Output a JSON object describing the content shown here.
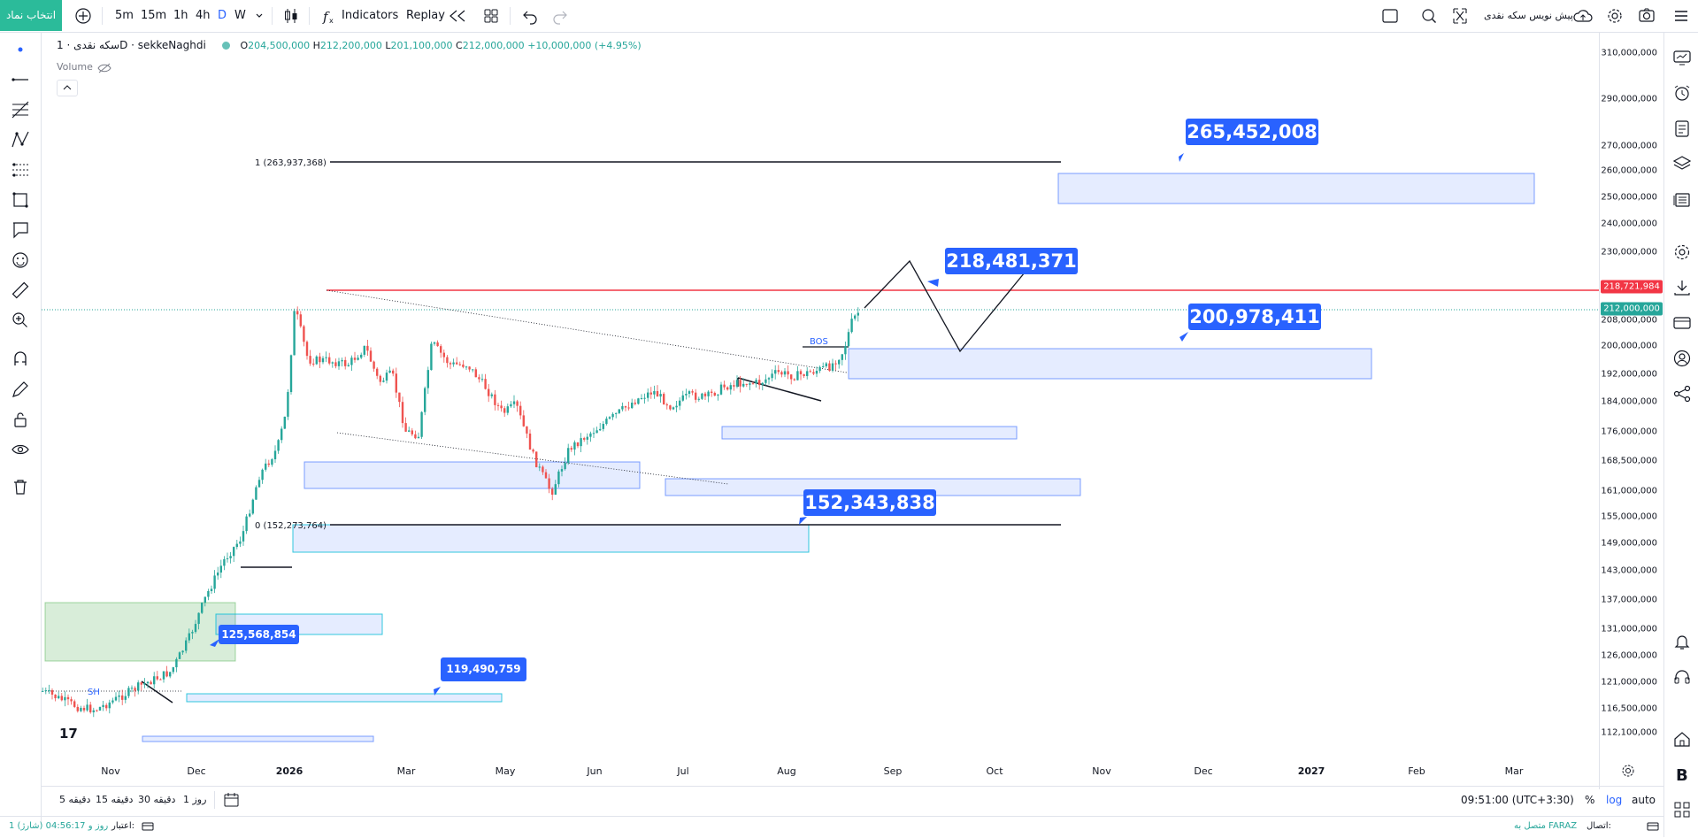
{
  "topbar": {
    "symbol_button": "انتخاب نماد",
    "timeframes": [
      "5m",
      "15m",
      "1h",
      "4h",
      "D",
      "W"
    ],
    "active_timeframe": "D",
    "indicators": "Indicators",
    "replay": "Replay",
    "ticker_label": "پیش نویس سکه نقدی"
  },
  "legend": {
    "name": "سکه نقدی · 1D · sekkeNaghdi",
    "open_label": "O",
    "open": "204,500,000",
    "high_label": "H",
    "high": "212,200,000",
    "low_label": "L",
    "low": "201,100,000",
    "close_label": "C",
    "close": "212,000,000",
    "change": "+10,000,000 (+4.95%)",
    "volume": "Volume"
  },
  "price_axis": {
    "ticks": [
      "310,000,000",
      "290,000,000",
      "270,000,000",
      "260,000,000",
      "250,000,000",
      "240,000,000",
      "230,000,000",
      "208,000,000",
      "200,000,000",
      "192,000,000",
      "184,000,000",
      "176,000,000",
      "168,500,000",
      "161,000,000",
      "155,000,000",
      "149,000,000",
      "143,000,000",
      "137,000,000",
      "131,000,000",
      "126,000,000",
      "121,000,000",
      "116,500,000",
      "112,100,000"
    ],
    "last_price": "212,000,000",
    "red_level": "218,721,984"
  },
  "time_axis": {
    "labels": [
      "Nov",
      "Dec",
      "2026",
      "Mar",
      "May",
      "Jun",
      "Jul",
      "Aug",
      "Sep",
      "Oct",
      "Nov",
      "Dec",
      "2027",
      "Feb",
      "Mar"
    ]
  },
  "drawings": {
    "callouts": [
      "265,452,008",
      "218,481,371",
      "200,978,411",
      "152,343,838",
      "125,568,854",
      "119,490,759"
    ],
    "fib_top": "1 (263,937,368)",
    "fib_bottom": "0 (152,273,764)",
    "bos": "BOS",
    "sh": "SH"
  },
  "bottombar": {
    "ranges": [
      "5 دقیقه",
      "15 دقیقه",
      "30 دقیقه",
      "1 روز"
    ],
    "clock": "09:51:00 (UTC+3:30)",
    "percent": "%",
    "log": "log",
    "auto": "auto"
  },
  "statusbar": {
    "credit_label": "اعتبار:",
    "credit_value": "1 روز و 04:56:17 (شارژ)",
    "connection_label": "اتصال:",
    "connection_value": "متصل به FARAZ"
  },
  "colors": {
    "up": "#26a69a",
    "down": "#ef5350",
    "accent": "#2962ff",
    "red_line": "#f23645",
    "zone_blue": "#2962ff",
    "zone_green": "#4caf50"
  }
}
